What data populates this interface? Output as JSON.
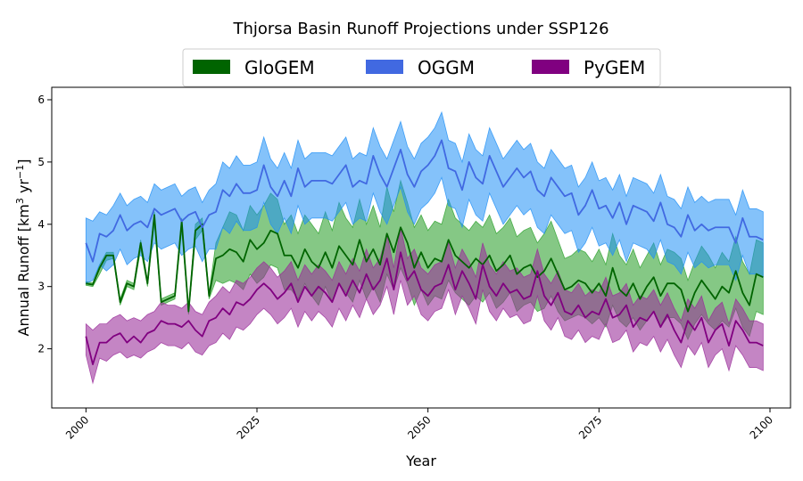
{
  "chart_data": {
    "type": "area",
    "title": "Thjorsa Basin Runoff Projections under SSP126",
    "xlabel": "Year",
    "ylabel_main": "Annual Runoff [km",
    "ylabel_sup1": "3",
    "ylabel_mid": " yr",
    "ylabel_sup2": "−1",
    "ylabel_end": "]",
    "xlim": [
      1995,
      2103
    ],
    "ylim": [
      1.05,
      6.2
    ],
    "xticks": [
      2000,
      2025,
      2050,
      2075,
      2100
    ],
    "yticks": [
      2,
      3,
      4,
      5,
      6
    ],
    "legend_position": "top-center",
    "series": [
      {
        "name": "GloGEM",
        "line_color": "#006400",
        "fill_color": "#2ca02c",
        "x": [
          2000,
          2001,
          2002,
          2003,
          2004,
          2005,
          2006,
          2007,
          2008,
          2009,
          2010,
          2011,
          2012,
          2013,
          2014,
          2015,
          2016,
          2017,
          2018,
          2019,
          2020,
          2021,
          2022,
          2023,
          2024,
          2025,
          2026,
          2027,
          2028,
          2029,
          2030,
          2031,
          2032,
          2033,
          2034,
          2035,
          2036,
          2037,
          2038,
          2039,
          2040,
          2041,
          2042,
          2043,
          2044,
          2045,
          2046,
          2047,
          2048,
          2049,
          2050,
          2051,
          2052,
          2053,
          2054,
          2055,
          2056,
          2057,
          2058,
          2059,
          2060,
          2061,
          2062,
          2063,
          2064,
          2065,
          2066,
          2067,
          2068,
          2069,
          2070,
          2071,
          2072,
          2073,
          2074,
          2075,
          2076,
          2077,
          2078,
          2079,
          2080,
          2081,
          2082,
          2083,
          2084,
          2085,
          2086,
          2087,
          2088,
          2089,
          2090,
          2091,
          2092,
          2093,
          2094,
          2095,
          2096,
          2097,
          2098,
          2099
        ],
        "mean": [
          3.05,
          3.03,
          3.3,
          3.5,
          3.5,
          2.75,
          3.05,
          3.0,
          3.7,
          3.05,
          4.15,
          2.75,
          2.8,
          2.85,
          4.05,
          2.6,
          3.9,
          4.0,
          2.85,
          3.45,
          3.5,
          3.6,
          3.55,
          3.4,
          3.75,
          3.6,
          3.7,
          3.9,
          3.85,
          3.5,
          3.5,
          3.3,
          3.6,
          3.4,
          3.3,
          3.55,
          3.3,
          3.65,
          3.5,
          3.35,
          3.75,
          3.4,
          3.6,
          3.35,
          3.85,
          3.55,
          3.95,
          3.7,
          3.3,
          3.55,
          3.3,
          3.45,
          3.4,
          3.75,
          3.5,
          3.4,
          3.3,
          3.45,
          3.35,
          3.5,
          3.25,
          3.35,
          3.5,
          3.2,
          3.3,
          3.35,
          3.15,
          3.25,
          3.45,
          3.2,
          2.95,
          3.0,
          3.1,
          3.05,
          2.9,
          3.05,
          2.85,
          3.3,
          2.95,
          2.85,
          3.05,
          2.8,
          3.0,
          3.15,
          2.85,
          3.05,
          3.05,
          2.95,
          2.6,
          2.9,
          3.1,
          2.95,
          2.8,
          3.0,
          2.9,
          3.25,
          2.9,
          2.7,
          3.2,
          3.15
        ],
        "lower": [
          3.02,
          3.0,
          3.2,
          3.42,
          3.45,
          2.7,
          3.0,
          2.95,
          3.6,
          3.0,
          4.0,
          2.7,
          2.75,
          2.8,
          3.9,
          2.55,
          3.75,
          3.9,
          2.8,
          3.1,
          3.05,
          3.1,
          3.05,
          2.95,
          3.2,
          3.05,
          3.15,
          3.35,
          3.3,
          2.95,
          2.95,
          2.8,
          3.05,
          2.85,
          2.7,
          3.0,
          2.75,
          3.05,
          2.9,
          2.75,
          3.1,
          2.8,
          3.0,
          2.75,
          3.2,
          2.95,
          3.3,
          3.05,
          2.7,
          2.95,
          2.7,
          2.85,
          2.8,
          3.1,
          2.9,
          2.8,
          2.7,
          2.85,
          2.75,
          2.9,
          2.65,
          2.75,
          2.9,
          2.6,
          2.7,
          2.75,
          2.6,
          2.65,
          2.85,
          2.6,
          2.45,
          2.5,
          2.55,
          2.5,
          2.4,
          2.5,
          2.35,
          2.7,
          2.45,
          2.35,
          2.5,
          2.3,
          2.45,
          2.6,
          2.35,
          2.5,
          2.5,
          2.4,
          2.15,
          2.4,
          2.55,
          2.4,
          2.3,
          2.45,
          2.35,
          2.65,
          2.35,
          2.2,
          2.6,
          2.55
        ],
        "upper": [
          3.08,
          3.06,
          3.35,
          3.55,
          3.55,
          2.8,
          3.1,
          3.05,
          3.75,
          3.1,
          4.2,
          2.8,
          2.85,
          2.9,
          4.1,
          2.65,
          4.0,
          4.1,
          2.9,
          3.7,
          3.95,
          4.2,
          4.15,
          3.9,
          4.3,
          4.15,
          4.3,
          4.5,
          4.4,
          4.0,
          4.15,
          3.85,
          4.15,
          4.0,
          3.85,
          4.2,
          3.9,
          4.35,
          4.1,
          3.95,
          4.4,
          4.0,
          4.3,
          3.95,
          4.6,
          4.2,
          4.7,
          4.35,
          3.95,
          4.15,
          3.9,
          4.05,
          4.0,
          4.4,
          4.1,
          4.0,
          3.9,
          4.05,
          3.95,
          4.15,
          3.85,
          3.95,
          4.1,
          3.8,
          3.9,
          3.95,
          3.7,
          3.85,
          4.05,
          3.75,
          3.45,
          3.5,
          3.6,
          3.55,
          3.4,
          3.6,
          3.35,
          3.85,
          3.5,
          3.35,
          3.6,
          3.3,
          3.5,
          3.7,
          3.35,
          3.6,
          3.55,
          3.45,
          3.1,
          3.4,
          3.65,
          3.5,
          3.3,
          3.55,
          3.4,
          3.8,
          3.4,
          3.2,
          3.75,
          3.7
        ]
      },
      {
        "name": "OGGM",
        "line_color": "#4169E1",
        "fill_color": "#1f8ff5",
        "x": [
          2000,
          2001,
          2002,
          2003,
          2004,
          2005,
          2006,
          2007,
          2008,
          2009,
          2010,
          2011,
          2012,
          2013,
          2014,
          2015,
          2016,
          2017,
          2018,
          2019,
          2020,
          2021,
          2022,
          2023,
          2024,
          2025,
          2026,
          2027,
          2028,
          2029,
          2030,
          2031,
          2032,
          2033,
          2034,
          2035,
          2036,
          2037,
          2038,
          2039,
          2040,
          2041,
          2042,
          2043,
          2044,
          2045,
          2046,
          2047,
          2048,
          2049,
          2050,
          2051,
          2052,
          2053,
          2054,
          2055,
          2056,
          2057,
          2058,
          2059,
          2060,
          2061,
          2062,
          2063,
          2064,
          2065,
          2066,
          2067,
          2068,
          2069,
          2070,
          2071,
          2072,
          2073,
          2074,
          2075,
          2076,
          2077,
          2078,
          2079,
          2080,
          2081,
          2082,
          2083,
          2084,
          2085,
          2086,
          2087,
          2088,
          2089,
          2090,
          2091,
          2092,
          2093,
          2094,
          2095,
          2096,
          2097,
          2098,
          2099
        ],
        "mean": [
          3.7,
          3.4,
          3.85,
          3.8,
          3.9,
          4.15,
          3.9,
          4.0,
          4.05,
          3.95,
          4.25,
          4.15,
          4.2,
          4.25,
          4.05,
          4.15,
          4.2,
          3.95,
          4.15,
          4.2,
          4.55,
          4.45,
          4.65,
          4.5,
          4.5,
          4.55,
          4.95,
          4.6,
          4.45,
          4.7,
          4.45,
          4.9,
          4.6,
          4.7,
          4.7,
          4.7,
          4.65,
          4.8,
          4.95,
          4.6,
          4.7,
          4.65,
          5.1,
          4.8,
          4.6,
          4.9,
          5.2,
          4.8,
          4.6,
          4.85,
          4.95,
          5.1,
          5.35,
          4.9,
          4.85,
          4.55,
          5.0,
          4.75,
          4.65,
          5.1,
          4.85,
          4.6,
          4.75,
          4.9,
          4.75,
          4.85,
          4.55,
          4.45,
          4.75,
          4.6,
          4.45,
          4.5,
          4.15,
          4.3,
          4.55,
          4.25,
          4.3,
          4.1,
          4.35,
          4.0,
          4.3,
          4.25,
          4.2,
          4.05,
          4.35,
          4.0,
          3.95,
          3.8,
          4.15,
          3.9,
          4.0,
          3.9,
          3.95,
          3.95,
          3.95,
          3.7,
          4.1,
          3.8,
          3.8,
          3.75
        ],
        "lower": [
          3.05,
          3.1,
          3.35,
          3.25,
          3.35,
          3.6,
          3.35,
          3.45,
          3.5,
          3.4,
          3.7,
          3.6,
          3.65,
          3.7,
          3.5,
          3.6,
          3.65,
          3.4,
          3.6,
          3.6,
          3.95,
          3.85,
          4.05,
          3.9,
          3.9,
          3.95,
          4.35,
          4.0,
          3.85,
          4.1,
          3.85,
          4.3,
          4.0,
          4.1,
          4.1,
          4.1,
          4.05,
          4.2,
          4.35,
          4.0,
          4.1,
          4.05,
          4.5,
          4.2,
          4.0,
          4.3,
          4.6,
          4.2,
          4.0,
          4.25,
          4.35,
          4.5,
          4.75,
          4.3,
          4.25,
          3.95,
          4.4,
          4.15,
          4.05,
          4.5,
          4.25,
          4.0,
          4.15,
          4.3,
          4.15,
          4.25,
          3.95,
          3.85,
          4.15,
          4.0,
          3.85,
          3.9,
          3.55,
          3.7,
          3.95,
          3.65,
          3.7,
          3.5,
          3.75,
          3.4,
          3.7,
          3.65,
          3.6,
          3.45,
          3.75,
          3.4,
          3.35,
          3.2,
          3.55,
          3.3,
          3.4,
          3.3,
          3.35,
          3.35,
          3.35,
          3.1,
          3.5,
          3.2,
          3.2,
          3.15
        ],
        "upper": [
          4.1,
          4.05,
          4.2,
          4.15,
          4.3,
          4.5,
          4.3,
          4.4,
          4.45,
          4.35,
          4.65,
          4.55,
          4.6,
          4.65,
          4.45,
          4.55,
          4.6,
          4.35,
          4.55,
          4.65,
          5.0,
          4.9,
          5.1,
          4.95,
          4.95,
          5.0,
          5.4,
          5.05,
          4.9,
          5.15,
          4.9,
          5.35,
          5.05,
          5.15,
          5.15,
          5.15,
          5.1,
          5.25,
          5.4,
          5.05,
          5.15,
          5.1,
          5.55,
          5.25,
          5.05,
          5.35,
          5.65,
          5.25,
          5.05,
          5.3,
          5.4,
          5.55,
          5.8,
          5.35,
          5.3,
          5.0,
          5.45,
          5.2,
          5.1,
          5.55,
          5.3,
          5.05,
          5.2,
          5.35,
          5.2,
          5.3,
          5.0,
          4.9,
          5.2,
          5.05,
          4.9,
          4.95,
          4.6,
          4.75,
          5.0,
          4.7,
          4.75,
          4.55,
          4.8,
          4.45,
          4.75,
          4.7,
          4.65,
          4.5,
          4.8,
          4.45,
          4.4,
          4.25,
          4.6,
          4.35,
          4.45,
          4.35,
          4.4,
          4.4,
          4.4,
          4.15,
          4.55,
          4.25,
          4.25,
          4.2
        ]
      },
      {
        "name": "PyGEM",
        "line_color": "#800080",
        "fill_color": "#9a2d9a",
        "x": [
          2000,
          2001,
          2002,
          2003,
          2004,
          2005,
          2006,
          2007,
          2008,
          2009,
          2010,
          2011,
          2012,
          2013,
          2014,
          2015,
          2016,
          2017,
          2018,
          2019,
          2020,
          2021,
          2022,
          2023,
          2024,
          2025,
          2026,
          2027,
          2028,
          2029,
          2030,
          2031,
          2032,
          2033,
          2034,
          2035,
          2036,
          2037,
          2038,
          2039,
          2040,
          2041,
          2042,
          2043,
          2044,
          2045,
          2046,
          2047,
          2048,
          2049,
          2050,
          2051,
          2052,
          2053,
          2054,
          2055,
          2056,
          2057,
          2058,
          2059,
          2060,
          2061,
          2062,
          2063,
          2064,
          2065,
          2066,
          2067,
          2068,
          2069,
          2070,
          2071,
          2072,
          2073,
          2074,
          2075,
          2076,
          2077,
          2078,
          2079,
          2080,
          2081,
          2082,
          2083,
          2084,
          2085,
          2086,
          2087,
          2088,
          2089,
          2090,
          2091,
          2092,
          2093,
          2094,
          2095,
          2096,
          2097,
          2098,
          2099
        ],
        "mean": [
          2.2,
          1.75,
          2.1,
          2.1,
          2.2,
          2.25,
          2.1,
          2.2,
          2.1,
          2.25,
          2.3,
          2.45,
          2.4,
          2.4,
          2.35,
          2.45,
          2.3,
          2.2,
          2.45,
          2.5,
          2.65,
          2.55,
          2.75,
          2.7,
          2.8,
          2.95,
          3.05,
          2.95,
          2.8,
          2.9,
          3.05,
          2.75,
          3.0,
          2.85,
          3.0,
          2.9,
          2.75,
          3.05,
          2.85,
          3.1,
          2.9,
          3.2,
          2.95,
          3.1,
          3.45,
          2.95,
          3.55,
          3.1,
          3.25,
          2.95,
          2.85,
          3.0,
          3.05,
          3.35,
          2.95,
          3.25,
          3.05,
          2.8,
          3.35,
          3.0,
          2.85,
          3.05,
          2.9,
          2.95,
          2.8,
          2.85,
          3.25,
          2.85,
          2.7,
          2.9,
          2.6,
          2.55,
          2.7,
          2.5,
          2.6,
          2.55,
          2.8,
          2.5,
          2.55,
          2.7,
          2.35,
          2.5,
          2.45,
          2.6,
          2.35,
          2.55,
          2.3,
          2.1,
          2.45,
          2.3,
          2.5,
          2.1,
          2.3,
          2.4,
          2.05,
          2.45,
          2.3,
          2.1,
          2.1,
          2.05
        ],
        "lower": [
          1.9,
          1.45,
          1.85,
          1.8,
          1.9,
          1.95,
          1.85,
          1.9,
          1.85,
          1.95,
          2.0,
          2.1,
          2.05,
          2.05,
          2.0,
          2.1,
          1.95,
          1.9,
          2.05,
          2.1,
          2.25,
          2.15,
          2.35,
          2.3,
          2.4,
          2.55,
          2.65,
          2.55,
          2.4,
          2.5,
          2.65,
          2.35,
          2.6,
          2.45,
          2.6,
          2.5,
          2.35,
          2.65,
          2.45,
          2.7,
          2.5,
          2.8,
          2.55,
          2.7,
          3.0,
          2.55,
          3.1,
          2.7,
          2.85,
          2.55,
          2.45,
          2.6,
          2.65,
          2.95,
          2.55,
          2.85,
          2.65,
          2.4,
          2.95,
          2.6,
          2.45,
          2.65,
          2.5,
          2.55,
          2.4,
          2.45,
          2.85,
          2.45,
          2.3,
          2.5,
          2.2,
          2.15,
          2.3,
          2.1,
          2.2,
          2.15,
          2.4,
          2.1,
          2.15,
          2.3,
          1.95,
          2.1,
          2.05,
          2.2,
          1.95,
          2.15,
          1.9,
          1.7,
          2.05,
          1.9,
          2.1,
          1.7,
          1.9,
          2.0,
          1.65,
          2.05,
          1.9,
          1.7,
          1.7,
          1.65
        ],
        "upper": [
          2.4,
          2.3,
          2.4,
          2.4,
          2.5,
          2.55,
          2.45,
          2.5,
          2.45,
          2.55,
          2.6,
          2.75,
          2.7,
          2.7,
          2.65,
          2.75,
          2.6,
          2.55,
          2.75,
          2.85,
          3.0,
          2.9,
          3.1,
          3.05,
          3.15,
          3.3,
          3.4,
          3.3,
          3.15,
          3.25,
          3.4,
          3.1,
          3.35,
          3.2,
          3.35,
          3.25,
          3.1,
          3.4,
          3.2,
          3.45,
          3.25,
          3.6,
          3.3,
          3.45,
          3.85,
          3.3,
          3.95,
          3.45,
          3.6,
          3.3,
          3.2,
          3.35,
          3.4,
          3.7,
          3.3,
          3.6,
          3.4,
          3.15,
          3.7,
          3.35,
          3.2,
          3.4,
          3.25,
          3.3,
          3.15,
          3.2,
          3.6,
          3.2,
          3.05,
          3.25,
          2.95,
          2.9,
          3.05,
          2.85,
          2.95,
          2.9,
          3.15,
          2.85,
          2.9,
          3.05,
          2.7,
          2.85,
          2.8,
          2.95,
          2.7,
          2.9,
          2.65,
          2.45,
          2.8,
          2.65,
          2.85,
          2.45,
          2.65,
          2.75,
          2.4,
          2.8,
          2.65,
          2.45,
          2.45,
          2.4
        ]
      }
    ]
  }
}
